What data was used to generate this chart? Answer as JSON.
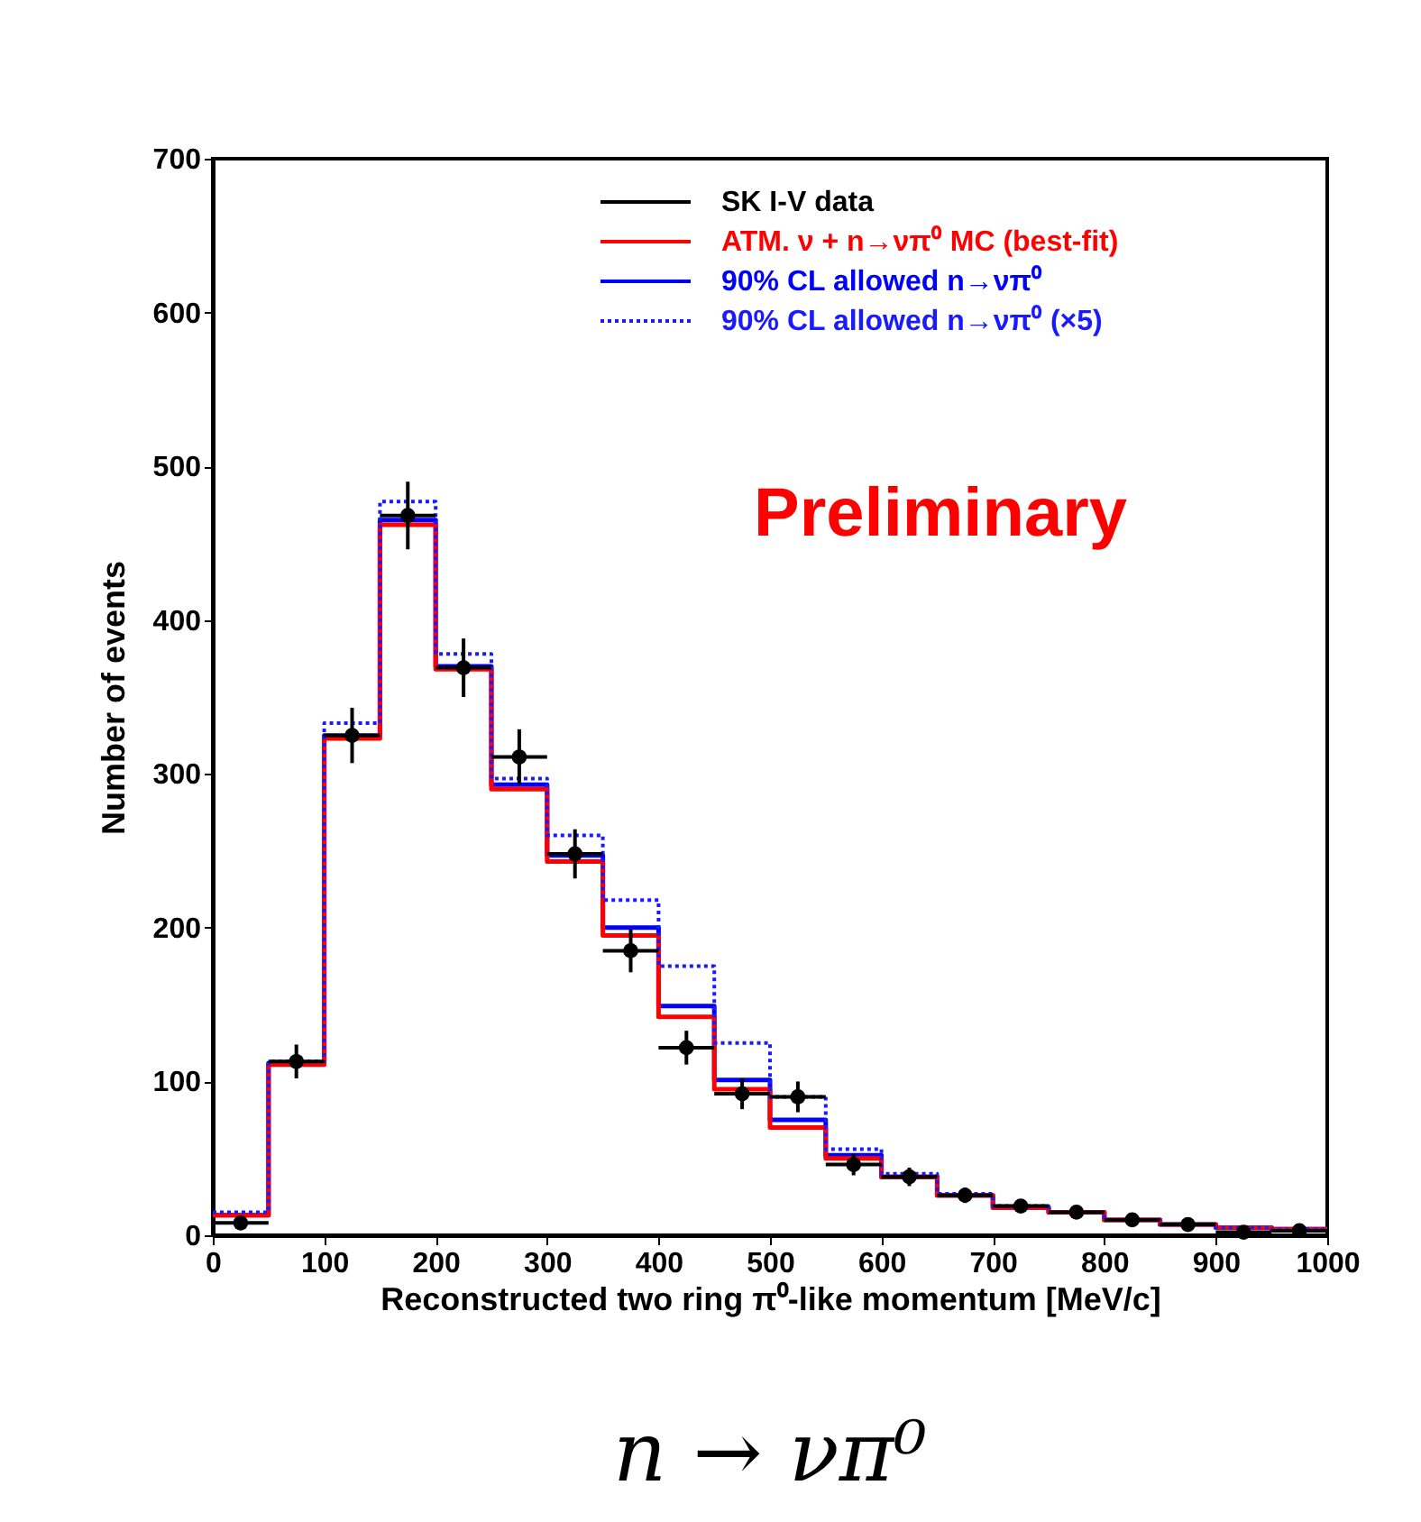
{
  "chart_data": {
    "type": "histogram",
    "title": "n → νπ⁰",
    "xlabel": "Reconstructed two ring π⁰-like momentum [MeV/c]",
    "ylabel": "Number of events",
    "bins": [
      0,
      50,
      100,
      150,
      200,
      250,
      300,
      350,
      400,
      450,
      500,
      550,
      600,
      650,
      700,
      750,
      800,
      850,
      900,
      950,
      1000
    ],
    "series": [
      {
        "name": "SK I-V data",
        "type": "scatter",
        "color": "#000000",
        "x": [
          25,
          75,
          125,
          175,
          225,
          275,
          325,
          375,
          425,
          475,
          525,
          575,
          625,
          675,
          725,
          775,
          825,
          875,
          925,
          975
        ],
        "values": [
          8,
          113,
          325,
          468,
          369,
          311,
          248,
          185,
          122,
          92,
          90,
          46,
          38,
          26,
          19,
          15,
          10,
          7,
          2,
          3
        ],
        "errors": [
          3,
          11,
          18,
          22,
          19,
          18,
          16,
          14,
          11,
          10,
          10,
          7,
          6,
          5,
          4,
          4,
          3,
          3,
          2,
          2
        ],
        "xerrors": [
          25,
          25,
          25,
          25,
          25,
          25,
          25,
          25,
          25,
          25,
          25,
          25,
          25,
          25,
          25,
          25,
          25,
          25,
          25,
          25
        ]
      },
      {
        "name": "ATM. ν + n→νπ⁰ MC (best-fit)",
        "type": "histogram",
        "color": "#ff0000",
        "values": [
          13,
          111,
          323,
          462,
          368,
          290,
          243,
          195,
          142,
          95,
          70,
          50,
          38,
          26,
          18,
          15,
          10,
          7,
          5,
          4
        ]
      },
      {
        "name": "90% CL allowed n→νπ⁰",
        "type": "histogram",
        "color": "#0000ff",
        "values": [
          13,
          112,
          325,
          465,
          370,
          293,
          247,
          200,
          149,
          101,
          75,
          52,
          38,
          26,
          18,
          15,
          10,
          7,
          5,
          4
        ]
      },
      {
        "name": "90% CL allowed n→νπ⁰ (×5)",
        "type": "histogram",
        "color": "#1a1aff",
        "line_style": "dotted",
        "values": [
          15,
          113,
          333,
          477,
          378,
          297,
          260,
          218,
          175,
          125,
          90,
          56,
          40,
          27,
          19,
          15,
          10,
          7,
          5,
          4
        ]
      }
    ],
    "xlim": [
      0,
      1000
    ],
    "xticks": [
      0,
      100,
      200,
      300,
      400,
      500,
      600,
      700,
      800,
      900,
      1000
    ],
    "ylim": [
      0,
      700
    ],
    "yticks": [
      0,
      100,
      200,
      300,
      400,
      500,
      600,
      700
    ],
    "annotations": [
      "Preliminary"
    ],
    "grid": false,
    "legend": "top right",
    "marker": "circle"
  }
}
